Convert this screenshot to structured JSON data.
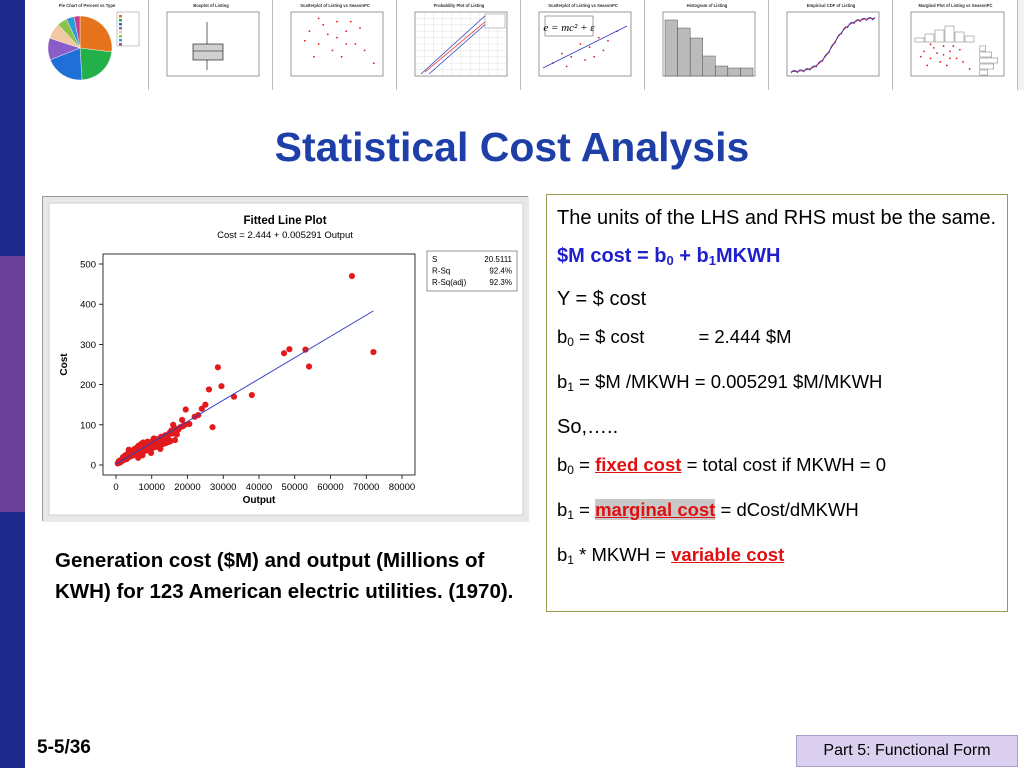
{
  "slide": {
    "title": "Statistical Cost Analysis",
    "page_number": "5-5/36",
    "footer": "Part 5: Functional Form"
  },
  "thumbnails": [
    {
      "title": "Pie Chart of Percent vs Type",
      "kind": "pie"
    },
    {
      "title": "Boxplot of Listing",
      "kind": "box"
    },
    {
      "title": "Scatterplot of Listing vs SeasonPC",
      "kind": "scatter"
    },
    {
      "title": "Probability Plot of Listing",
      "kind": "prob"
    },
    {
      "title": "Scatterplot of Listing vs SeasonPC",
      "kind": "formula",
      "formula": "e = mc² + ε"
    },
    {
      "title": "Histogram of Listing",
      "kind": "hist"
    },
    {
      "title": "Empirical CDF of Listing",
      "kind": "cdf"
    },
    {
      "title": "Marginal Plot of Listing vs SeasonPC",
      "kind": "marginal"
    }
  ],
  "caption": "Generation cost ($M) and output (Millions of KWH) for 123 American electric utilities. (1970).",
  "textbox": {
    "line1": "The units of the LHS and RHS must be the same.",
    "eq_lhs": "$M cost  =  b",
    "eq_b0_sub": "0",
    "eq_mid": "  +  b",
    "eq_b1_sub": "1",
    "eq_rhs": "MKWH",
    "y_def": "Y = $ cost",
    "b0_label": "b",
    "b0_sub": "0",
    "b0_def": " = $ cost",
    "b0_value": "= 2.444 $M",
    "b1_label": "b",
    "b1_sub": "1",
    "b1_def": " = $M /MKWH  = 0.005291 $M/MKWH",
    "so": "So,…..",
    "fixed_pre": " = ",
    "fixed_term": "fixed cost",
    "fixed_post": " = total cost if MKWH = 0",
    "marg_pre": " = ",
    "marg_term": "marginal cost",
    "marg_post": " = dCost/dMKWH",
    "var_pre": " * MKWH = ",
    "var_term": "variable cost"
  },
  "chart_data": {
    "type": "scatter",
    "title": "Fitted Line Plot",
    "subtitle": "Cost =  2.444 + 0.005291 Output",
    "xlabel": "Output",
    "ylabel": "Cost",
    "xlim": [
      0,
      80000
    ],
    "ylim": [
      0,
      500
    ],
    "x_ticks": [
      "0",
      "10000",
      "20000",
      "30000",
      "40000",
      "50000",
      "60000",
      "70000",
      "80000"
    ],
    "y_ticks": [
      "0",
      "100",
      "200",
      "300",
      "400",
      "500"
    ],
    "fit": {
      "intercept": 2.444,
      "slope": 0.005291,
      "x_range": [
        0,
        72000
      ]
    },
    "stats": [
      {
        "label": "S",
        "value": "20.5111"
      },
      {
        "label": "R-Sq",
        "value": "92.4%"
      },
      {
        "label": "R-Sq(adj)",
        "value": "92.3%"
      }
    ],
    "marker_color": "#e31a1c",
    "line_color": "#2f3fbf",
    "points": [
      [
        500,
        4
      ],
      [
        700,
        8
      ],
      [
        900,
        10
      ],
      [
        1100,
        6
      ],
      [
        1300,
        12
      ],
      [
        1500,
        9
      ],
      [
        1700,
        14
      ],
      [
        1900,
        11
      ],
      [
        2100,
        16
      ],
      [
        2300,
        13
      ],
      [
        2500,
        18
      ],
      [
        2800,
        20
      ],
      [
        3000,
        15
      ],
      [
        3200,
        22
      ],
      [
        3500,
        19
      ],
      [
        3700,
        24
      ],
      [
        4000,
        21
      ],
      [
        4200,
        26
      ],
      [
        4500,
        23
      ],
      [
        4800,
        28
      ],
      [
        5000,
        25
      ],
      [
        5300,
        30
      ],
      [
        5600,
        27
      ],
      [
        5900,
        32
      ],
      [
        6200,
        29
      ],
      [
        6500,
        34
      ],
      [
        6800,
        31
      ],
      [
        7100,
        36
      ],
      [
        7400,
        33
      ],
      [
        7700,
        38
      ],
      [
        8000,
        35
      ],
      [
        8300,
        40
      ],
      [
        8600,
        37
      ],
      [
        8900,
        42
      ],
      [
        9200,
        39
      ],
      [
        9500,
        44
      ],
      [
        9800,
        41
      ],
      [
        10100,
        46
      ],
      [
        10400,
        43
      ],
      [
        10700,
        48
      ],
      [
        11000,
        45
      ],
      [
        11300,
        50
      ],
      [
        11600,
        47
      ],
      [
        11900,
        52
      ],
      [
        12200,
        49
      ],
      [
        12500,
        54
      ],
      [
        12800,
        51
      ],
      [
        13100,
        56
      ],
      [
        13400,
        53
      ],
      [
        13700,
        58
      ],
      [
        14000,
        55
      ],
      [
        14300,
        60
      ],
      [
        14600,
        57
      ],
      [
        14900,
        62
      ],
      [
        15200,
        59
      ],
      [
        3600,
        38
      ],
      [
        4400,
        30
      ],
      [
        5200,
        40
      ],
      [
        6000,
        44
      ],
      [
        6600,
        38
      ],
      [
        7200,
        46
      ],
      [
        7800,
        42
      ],
      [
        8400,
        48
      ],
      [
        9000,
        52
      ],
      [
        9600,
        50
      ],
      [
        10200,
        60
      ],
      [
        10800,
        56
      ],
      [
        11400,
        64
      ],
      [
        12000,
        62
      ],
      [
        12600,
        70
      ],
      [
        13200,
        66
      ],
      [
        13800,
        74
      ],
      [
        14400,
        72
      ],
      [
        15000,
        80
      ],
      [
        15600,
        78
      ],
      [
        16200,
        84
      ],
      [
        16800,
        90
      ],
      [
        17400,
        88
      ],
      [
        18000,
        94
      ],
      [
        18600,
        96
      ],
      [
        19200,
        100
      ],
      [
        2000,
        20
      ],
      [
        2600,
        24
      ],
      [
        3300,
        28
      ],
      [
        4100,
        34
      ],
      [
        4900,
        36
      ],
      [
        5700,
        42
      ],
      [
        6300,
        48
      ],
      [
        7000,
        52
      ],
      [
        7600,
        56
      ],
      [
        8200,
        44
      ],
      [
        8800,
        58
      ],
      [
        9400,
        46
      ],
      [
        10000,
        54
      ],
      [
        11800,
        48
      ],
      [
        13000,
        58
      ],
      [
        14200,
        68
      ],
      [
        16000,
        100
      ],
      [
        17000,
        76
      ],
      [
        18500,
        112
      ],
      [
        19500,
        138
      ],
      [
        20500,
        102
      ],
      [
        22000,
        120
      ],
      [
        23000,
        124
      ],
      [
        24000,
        140
      ],
      [
        25000,
        150
      ],
      [
        26000,
        188
      ],
      [
        27000,
        94
      ],
      [
        28500,
        243
      ],
      [
        29500,
        196
      ],
      [
        33000,
        170
      ],
      [
        38000,
        174
      ],
      [
        47000,
        278
      ],
      [
        48500,
        288
      ],
      [
        53000,
        287
      ],
      [
        54000,
        245
      ],
      [
        66000,
        470
      ],
      [
        72000,
        281
      ],
      [
        16500,
        62
      ],
      [
        15500,
        86
      ],
      [
        12400,
        40
      ],
      [
        10600,
        66
      ],
      [
        9800,
        30
      ],
      [
        7400,
        24
      ],
      [
        6200,
        18
      ]
    ]
  }
}
